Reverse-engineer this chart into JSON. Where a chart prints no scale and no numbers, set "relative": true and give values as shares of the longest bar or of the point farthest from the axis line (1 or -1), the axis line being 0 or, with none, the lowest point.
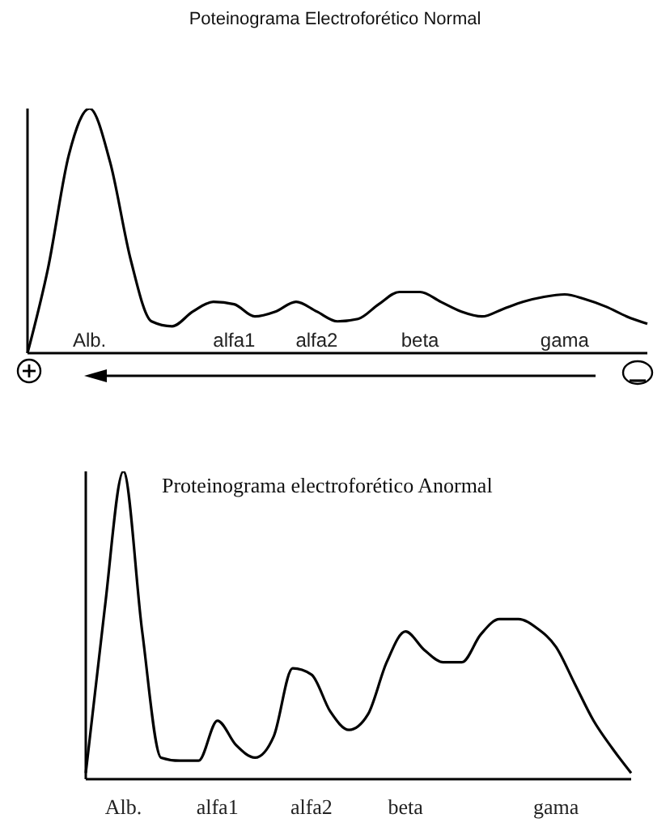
{
  "chart_data": [
    {
      "type": "line",
      "title": "Poteinograma Electroforético Normal",
      "relative": true,
      "legend": false,
      "grid": false,
      "marker": "none",
      "categories": [
        null,
        null,
        null,
        "Alb.",
        null,
        null,
        null,
        null,
        null,
        null,
        "alfa1",
        null,
        null,
        null,
        "alfa2",
        null,
        null,
        null,
        null,
        "beta",
        null,
        null,
        null,
        null,
        null,
        null,
        "gama",
        null,
        null,
        null,
        null
      ],
      "series": [
        {
          "color": "#000000",
          "values": [
            0,
            0.35,
            0.81,
            1.0,
            0.78,
            0.38,
            0.13,
            0.11,
            0.17,
            0.21,
            0.2,
            0.15,
            0.17,
            0.21,
            0.17,
            0.13,
            0.14,
            0.2,
            0.25,
            0.25,
            0.21,
            0.17,
            0.15,
            0.18,
            0.21,
            0.23,
            0.24,
            0.22,
            0.19,
            0.15,
            0.12
          ]
        }
      ]
    },
    {
      "type": "line",
      "title": "Proteinograma electroforético Anormal",
      "relative": true,
      "legend": false,
      "grid": false,
      "marker": "none",
      "categories": [
        null,
        null,
        "Alb.",
        null,
        null,
        null,
        null,
        "alfa1",
        null,
        null,
        null,
        null,
        "alfa2",
        null,
        null,
        null,
        null,
        "beta",
        null,
        null,
        null,
        null,
        null,
        null,
        null,
        "gama",
        null,
        null,
        null,
        null
      ],
      "series": [
        {
          "color": "#000000",
          "values": [
            0.02,
            0.55,
            1.0,
            0.48,
            0.07,
            0.06,
            0.06,
            0.19,
            0.11,
            0.07,
            0.14,
            0.36,
            0.34,
            0.22,
            0.16,
            0.21,
            0.38,
            0.48,
            0.42,
            0.38,
            0.38,
            0.47,
            0.52,
            0.52,
            0.49,
            0.43,
            0.31,
            0.19,
            0.1,
            0.02
          ]
        }
      ]
    }
  ]
}
